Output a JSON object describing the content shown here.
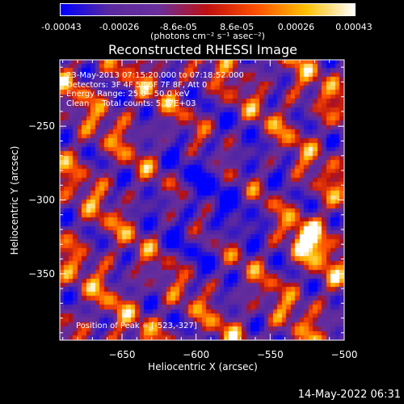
{
  "chart_data": {
    "type": "heatmap",
    "title": "Reconstructed RHESSI Image",
    "xlabel": "Heliocentric X (arcsec)",
    "ylabel": "Heliocentric Y (arcsec)",
    "xlim": [
      -692,
      -500
    ],
    "ylim": [
      -395,
      -205
    ],
    "x_ticks": [
      -650,
      -600,
      -550,
      -500
    ],
    "y_ticks": [
      -250,
      -300,
      -350
    ],
    "colorbar": {
      "ticks": [
        "-0.00043",
        "-0.00026",
        "-8.6e-05",
        "8.6e-05",
        "0.00026",
        "0.00043"
      ],
      "tick_values": [
        -0.00043,
        -0.00026,
        -8.6e-05,
        8.6e-05,
        0.00026,
        0.00043
      ],
      "range": [
        -0.00043,
        0.00043
      ],
      "units": "(photons cm⁻² s⁻¹ asec⁻²)",
      "colors": [
        "#0000ff",
        "#5a2aa0",
        "#6a2f9c",
        "#c01010",
        "#ff5000",
        "#ffc000",
        "#ffffff"
      ]
    },
    "annotations": {
      "time_range": "23-May-2013 07:15:20.000 to 07:18:52.000",
      "detectors": "Detectors: 3F 4F 5F 6F 7F 8F, Att 0",
      "energy_range": "Energy Range: 25.0 - 50.0 keV",
      "method_counts": "Clean     Total counts: 5.17E+03",
      "peak": "Position of Peak = [-523,-327]"
    },
    "peak_position": [
      -523,
      -327
    ]
  },
  "timestamp": "14-May-2022 06:31"
}
